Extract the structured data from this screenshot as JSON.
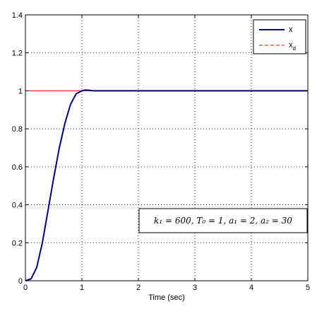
{
  "chart_data": {
    "type": "line",
    "title": "",
    "xlabel": "Time (sec)",
    "ylabel": "",
    "xlim": [
      0,
      5
    ],
    "ylim": [
      0,
      1.4
    ],
    "xticks": [
      0,
      1,
      2,
      3,
      4,
      5
    ],
    "yticks": [
      0,
      0.2,
      0.4,
      0.6,
      0.8,
      1,
      1.2,
      1.4
    ],
    "xtick_labels": [
      "0",
      "1",
      "2",
      "3",
      "4",
      "5"
    ],
    "ytick_labels": [
      "0",
      "0.2",
      "0.4",
      "0.6",
      "0.8",
      "1",
      "1.2",
      "1.4"
    ],
    "grid": true,
    "legend_position": "top-right",
    "series": [
      {
        "name": "x",
        "color": "#00008B",
        "style": "solid",
        "x": [
          0,
          0.1,
          0.2,
          0.3,
          0.4,
          0.5,
          0.6,
          0.7,
          0.8,
          0.9,
          1.0,
          1.05,
          1.1,
          1.15,
          1.2,
          1.5,
          2,
          3,
          4,
          5
        ],
        "y": [
          0,
          0.01,
          0.07,
          0.2,
          0.37,
          0.54,
          0.7,
          0.83,
          0.93,
          0.985,
          1.0,
          1.004,
          1.004,
          1.002,
          1.0,
          1.0,
          1.0,
          1.0,
          1.0,
          1.0
        ]
      },
      {
        "name": "x_d",
        "color": "#FF0000",
        "style": "dashed",
        "x": [
          0,
          5
        ],
        "y": [
          1,
          1
        ]
      }
    ],
    "legend": [
      {
        "label": "x",
        "sub": "",
        "color": "#00008B",
        "style": "solid"
      },
      {
        "label": "x",
        "sub": "d",
        "color": "#FF0000",
        "style": "dashed"
      }
    ],
    "annotation": "k₁ = 600, T₀ = 1, a₁ = 2, a₂ = 30"
  }
}
